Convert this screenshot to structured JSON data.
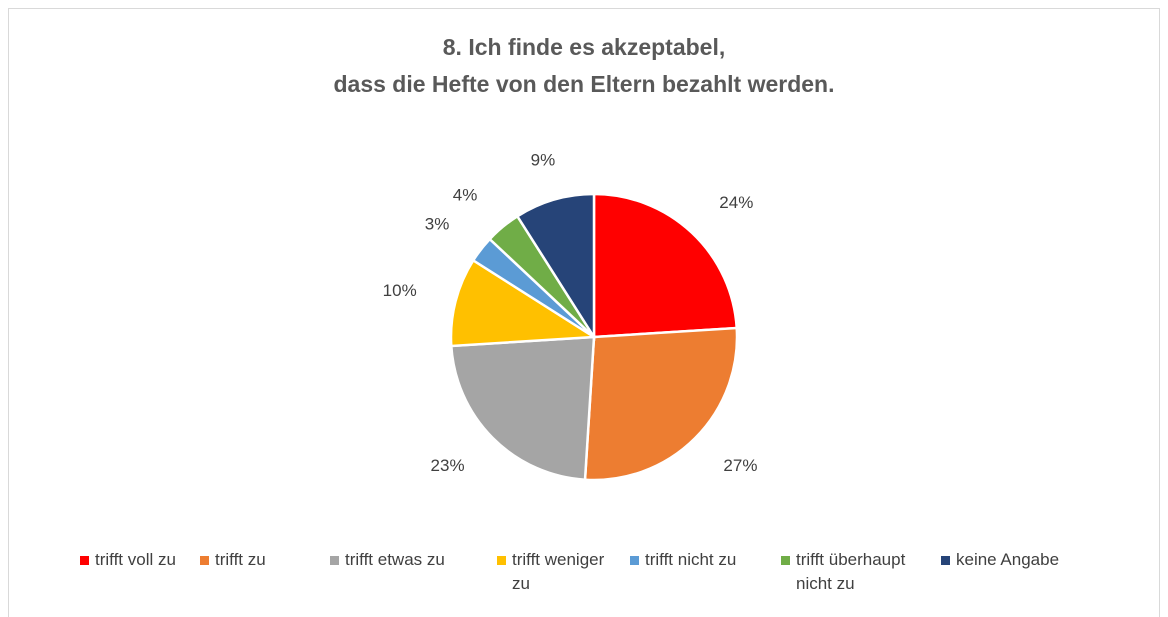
{
  "chart_data": {
    "type": "pie",
    "title": [
      "8. Ich finde es akzeptabel,",
      "dass die Hefte von den Eltern bezahlt werden."
    ],
    "categories": [
      "trifft voll zu",
      "trifft zu",
      "trifft etwas zu",
      "trifft weniger zu",
      "trifft nicht zu",
      "trifft überhaupt nicht zu",
      "keine Angabe"
    ],
    "values": [
      24,
      27,
      23,
      10,
      3,
      4,
      9
    ],
    "value_labels": [
      "24%",
      "27%",
      "23%",
      "10%",
      "3%",
      "4%",
      "9%"
    ],
    "colors": [
      "#ff0000",
      "#ed7d31",
      "#a5a5a5",
      "#ffc000",
      "#5b9bd5",
      "#70ad47",
      "#264478"
    ],
    "legend": "bottom"
  }
}
